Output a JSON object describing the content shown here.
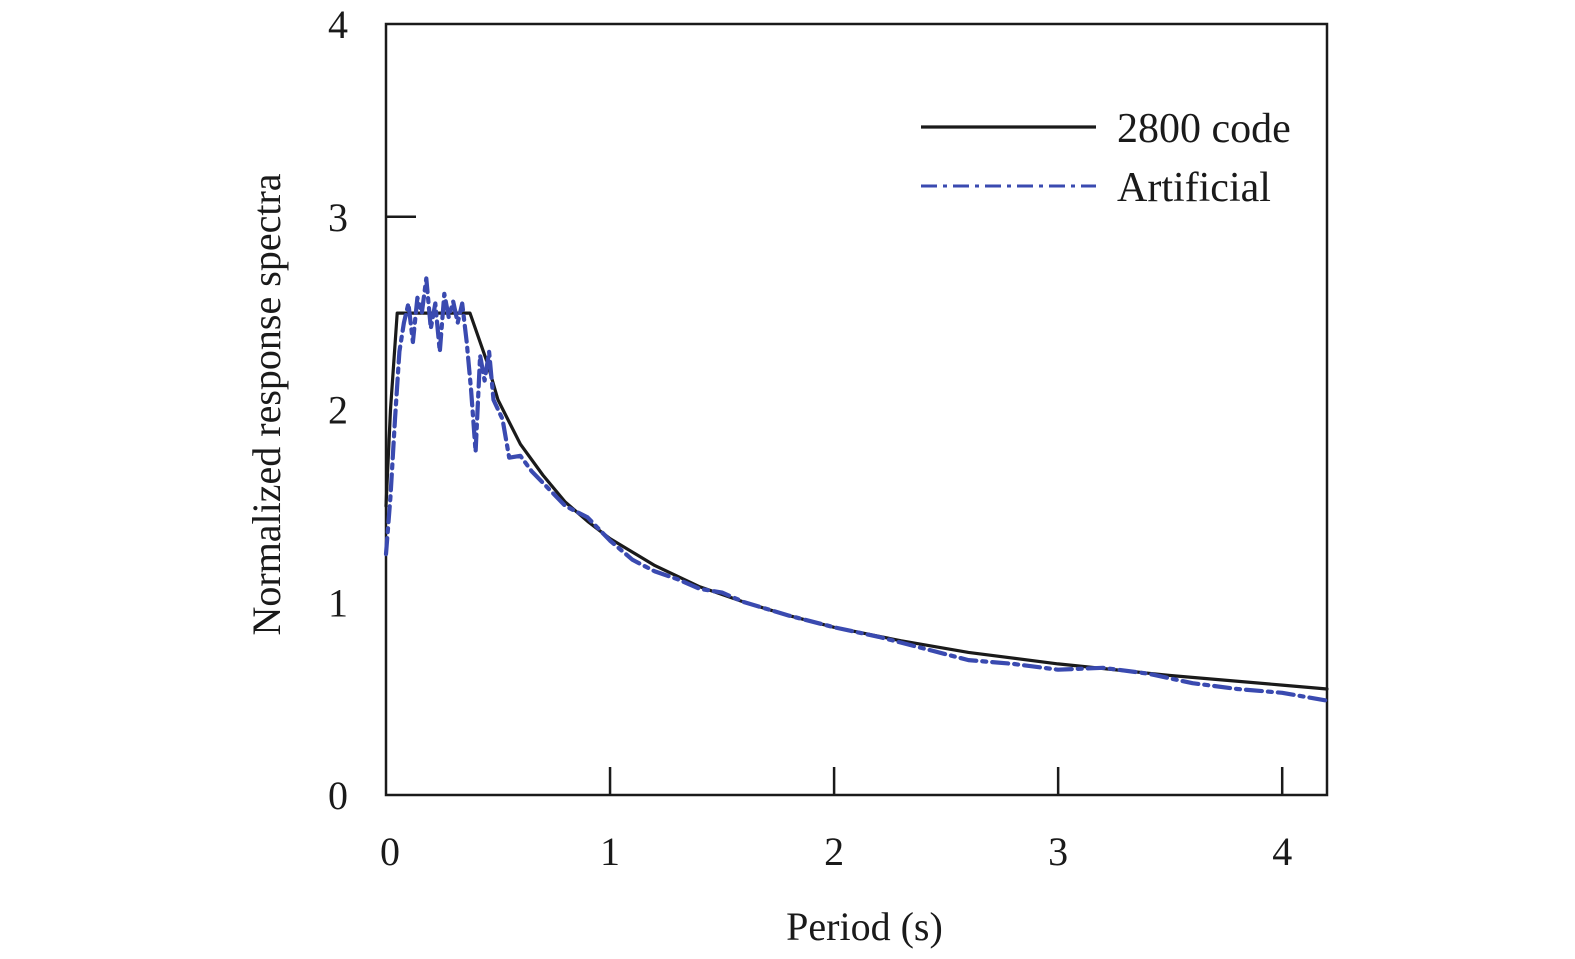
{
  "chart_data": {
    "type": "line",
    "title": "",
    "xlabel": "Period (s)",
    "ylabel": "Normalized response spectra",
    "xlim": [
      0,
      4.2
    ],
    "ylim": [
      0,
      4
    ],
    "xticks": [
      0,
      1,
      2,
      3,
      4
    ],
    "yticks": [
      0,
      1,
      2,
      3,
      4
    ],
    "xtick_labels": [
      "0",
      "1",
      "2",
      "3",
      "4"
    ],
    "ytick_labels": [
      "0",
      "1",
      "2",
      "3",
      "4"
    ],
    "grid": false,
    "legend_position": "top-right",
    "series": [
      {
        "name": "2800 code",
        "color": "#1a1a1a",
        "line_style": "solid",
        "x": [
          0,
          0.02,
          0.05,
          0.1,
          0.2,
          0.3,
          0.375,
          0.45,
          0.5,
          0.6,
          0.7,
          0.8,
          0.9,
          1.0,
          1.2,
          1.4,
          1.6,
          1.8,
          2.0,
          2.3,
          2.6,
          3.0,
          3.5,
          4.0,
          4.2
        ],
        "y": [
          1.5,
          2.0,
          2.5,
          2.5,
          2.5,
          2.5,
          2.5,
          2.25,
          2.05,
          1.82,
          1.66,
          1.52,
          1.42,
          1.33,
          1.19,
          1.08,
          1.0,
          0.93,
          0.87,
          0.8,
          0.74,
          0.68,
          0.62,
          0.57,
          0.55
        ]
      },
      {
        "name": "Artificial",
        "color": "#3a4ab0",
        "line_style": "dash-dot",
        "x": [
          0,
          0.02,
          0.04,
          0.06,
          0.08,
          0.1,
          0.12,
          0.14,
          0.16,
          0.18,
          0.2,
          0.22,
          0.24,
          0.26,
          0.28,
          0.3,
          0.32,
          0.34,
          0.36,
          0.38,
          0.4,
          0.42,
          0.44,
          0.46,
          0.48,
          0.5,
          0.52,
          0.55,
          0.6,
          0.65,
          0.7,
          0.8,
          0.9,
          1.0,
          1.1,
          1.2,
          1.3,
          1.4,
          1.5,
          1.6,
          1.8,
          2.0,
          2.2,
          2.4,
          2.6,
          2.8,
          3.0,
          3.2,
          3.4,
          3.6,
          3.8,
          4.0,
          4.2
        ],
        "y": [
          1.25,
          1.55,
          1.95,
          2.3,
          2.45,
          2.55,
          2.35,
          2.58,
          2.5,
          2.68,
          2.42,
          2.55,
          2.3,
          2.6,
          2.48,
          2.56,
          2.45,
          2.55,
          2.35,
          2.1,
          1.78,
          2.28,
          2.15,
          2.3,
          2.05,
          2.0,
          1.95,
          1.75,
          1.76,
          1.68,
          1.62,
          1.5,
          1.44,
          1.32,
          1.22,
          1.16,
          1.12,
          1.07,
          1.05,
          1.0,
          0.93,
          0.87,
          0.82,
          0.76,
          0.7,
          0.68,
          0.65,
          0.66,
          0.63,
          0.58,
          0.55,
          0.53,
          0.49
        ]
      }
    ]
  }
}
